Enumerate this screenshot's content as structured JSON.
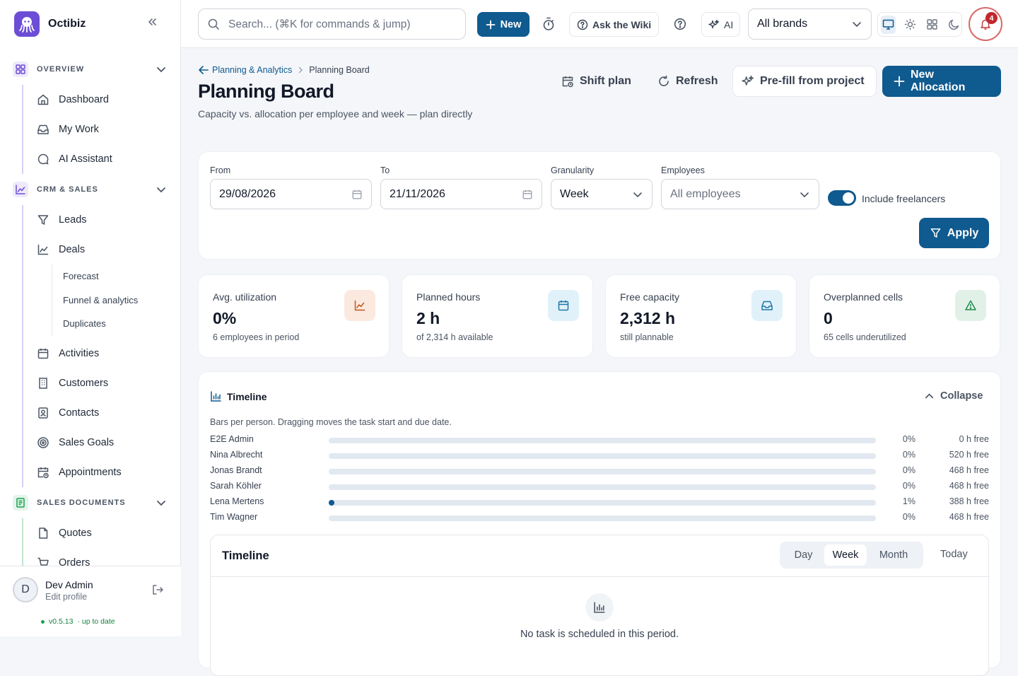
{
  "app": {
    "name": "Octibiz"
  },
  "sidebar": {
    "sections": [
      {
        "label": "OVERVIEW",
        "items": [
          "Dashboard",
          "My Work",
          "AI Assistant"
        ]
      },
      {
        "label": "CRM & SALES",
        "items": [
          "Leads",
          "Deals",
          "Activities",
          "Customers",
          "Contacts",
          "Sales Goals",
          "Appointments"
        ],
        "deals_sub": [
          "Forecast",
          "Funnel & analytics",
          "Duplicates"
        ]
      },
      {
        "label": "SALES DOCUMENTS",
        "items": [
          "Quotes",
          "Orders"
        ]
      }
    ],
    "user": {
      "initial": "D",
      "name": "Dev Admin",
      "sub": "Edit profile"
    },
    "version": {
      "text": "v0.5.13",
      "status": "· up to date"
    }
  },
  "topbar": {
    "search_placeholder": "Search... (⌘K for commands & jump)",
    "new_label": "New",
    "wiki_label": "Ask the Wiki",
    "ai_label": "AI",
    "brand_select": "All brands",
    "notifications": "4"
  },
  "page": {
    "breadcrumb": {
      "parent": "Planning & Analytics",
      "current": "Planning Board"
    },
    "title": "Planning Board",
    "subtitle": "Capacity vs. allocation per employee and week — plan directly",
    "actions": {
      "shift": "Shift plan",
      "refresh": "Refresh",
      "prefill": "Pre-fill from project",
      "new_alloc": "New Allocation"
    }
  },
  "filters": {
    "from_label": "From",
    "from_value": "29/08/2026",
    "to_label": "To",
    "to_value": "21/11/2026",
    "gran_label": "Granularity",
    "gran_value": "Week",
    "emp_label": "Employees",
    "emp_placeholder": "All employees",
    "freelancers_label": "Include freelancers",
    "freelancers_on": true,
    "apply_label": "Apply"
  },
  "stats": [
    {
      "label": "Avg. utilization",
      "value": "0%",
      "sub": "6 employees in period",
      "icon": "trend-chart-icon"
    },
    {
      "label": "Planned hours",
      "value": "2 h",
      "sub": "of 2,314 h available",
      "icon": "calendar-icon"
    },
    {
      "label": "Free capacity",
      "value": "2,312 h",
      "sub": "still plannable",
      "icon": "inbox-icon"
    },
    {
      "label": "Overplanned cells",
      "value": "0",
      "sub": "65 cells underutilized",
      "icon": "warning-icon"
    }
  ],
  "timeline": {
    "title": "Timeline",
    "collapse_label": "Collapse",
    "description": "Bars per person. Dragging moves the task start and due date.",
    "rows": [
      {
        "name": "E2E Admin",
        "utilization": 0,
        "pct": "0%",
        "free": "0 h free"
      },
      {
        "name": "Nina Albrecht",
        "utilization": 0,
        "pct": "0%",
        "free": "520 h free"
      },
      {
        "name": "Jonas Brandt",
        "utilization": 0,
        "pct": "0%",
        "free": "468 h free"
      },
      {
        "name": "Sarah Köhler",
        "utilization": 0,
        "pct": "0%",
        "free": "468 h free"
      },
      {
        "name": "Lena Mertens",
        "utilization": 0.01,
        "pct": "1%",
        "free": "388 h free"
      },
      {
        "name": "Tim Wagner",
        "utilization": 0,
        "pct": "0%",
        "free": "468 h free"
      }
    ],
    "inner": {
      "title": "Timeline",
      "views": [
        "Day",
        "Week",
        "Month"
      ],
      "active_view": "Week",
      "today_label": "Today",
      "empty_text": "No task is scheduled in this period."
    }
  },
  "colors": {
    "primary": "#0f5a8f",
    "accent_purple": "#6d4dd6",
    "danger": "#c0282d"
  }
}
